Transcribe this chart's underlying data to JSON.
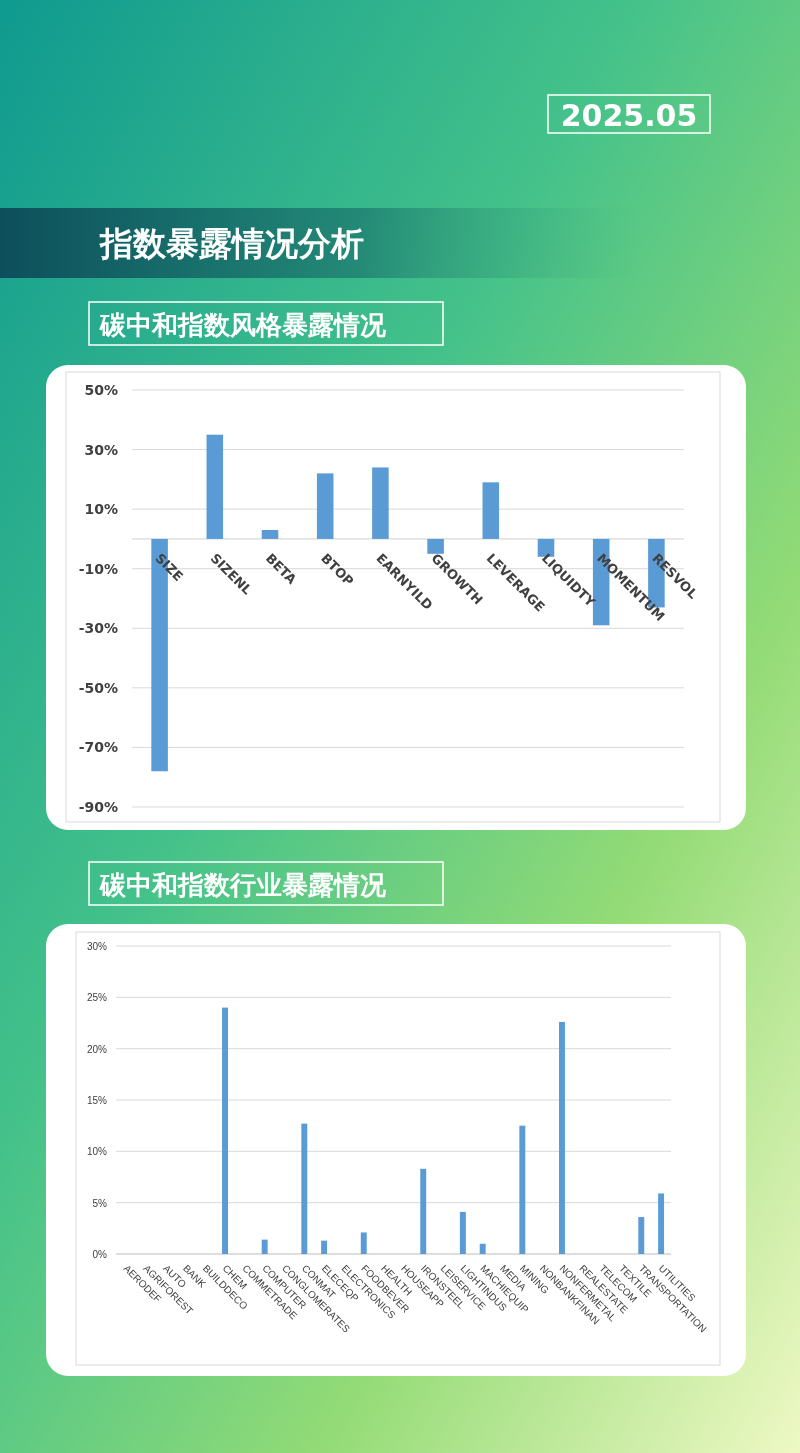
{
  "chart_data": [
    {
      "type": "other",
      "title": "指数暴露情况分析",
      "annotations": [
        "2025.05"
      ]
    },
    {
      "type": "bar",
      "title": "碳中和指数风格暴露情况",
      "categories": [
        "SIZE",
        "SIZENL",
        "BETA",
        "BTOP",
        "EARNYILD",
        "GROWTH",
        "LEVERAGE",
        "LIQUIDTY",
        "MOMENTUM",
        "RESVOL"
      ],
      "values": [
        -78,
        35,
        3,
        22,
        24,
        -5,
        19,
        -6,
        -29,
        -23
      ],
      "color": "#5b9bd5",
      "ylim": [
        -90,
        50
      ],
      "yticks": [
        {
          "value": 50,
          "label": "50%"
        },
        {
          "value": 30,
          "label": "30%"
        },
        {
          "value": 10,
          "label": "10%"
        },
        {
          "value": -10,
          "label": "-10%"
        },
        {
          "value": -30,
          "label": "-30%"
        },
        {
          "value": -50,
          "label": "-50%"
        },
        {
          "value": -70,
          "label": "-70%"
        },
        {
          "value": -90,
          "label": "-90%"
        }
      ],
      "grid": "y"
    },
    {
      "type": "bar",
      "title": "碳中和指数行业暴露情况",
      "categories": [
        "AERODEF",
        "AGRIFOREST",
        "AUTO",
        "BANK",
        "BUILDDECO",
        "CHEM",
        "COMMETRADE",
        "COMPUTER",
        "CONGLOMERATES",
        "CONMAT",
        "ELECEQP",
        "ELECTRONICS",
        "FOODBEVER",
        "HEALTH",
        "HOUSEAPP",
        "IRONSTEEL",
        "LEISERVICE",
        "LIGHTINDUS",
        "MACHIEQUIP",
        "MEDIA",
        "MINING",
        "NONBANKFINAN",
        "NONFERMETAL",
        "REALESTATE",
        "TELECOM",
        "TEXTILE",
        "TRANSPORTATION",
        "UTILITIES"
      ],
      "values": [
        0,
        0,
        0,
        0,
        0,
        24,
        0,
        1.4,
        0,
        12.7,
        1.3,
        0,
        2.1,
        0,
        0,
        8.3,
        0,
        4.1,
        1.0,
        0,
        12.5,
        0,
        22.6,
        0,
        0,
        0,
        3.6,
        5.9
      ],
      "color": "#5b9bd5",
      "ylim": [
        0,
        30
      ],
      "yticks": [
        {
          "value": 30,
          "label": "30%"
        },
        {
          "value": 25,
          "label": "25%"
        },
        {
          "value": 20,
          "label": "20%"
        },
        {
          "value": 15,
          "label": "15%"
        },
        {
          "value": 10,
          "label": "10%"
        },
        {
          "value": 5,
          "label": "5%"
        },
        {
          "value": 0,
          "label": "0%"
        }
      ],
      "grid": "y"
    }
  ]
}
